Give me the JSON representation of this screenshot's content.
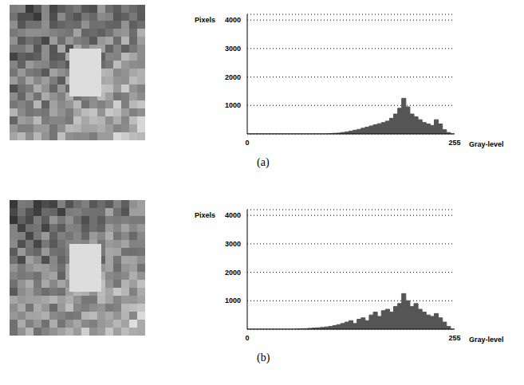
{
  "chart_data": [
    {
      "type": "histogram",
      "title": "(a)",
      "x_label": "Gray-level",
      "y_label": "Pixels",
      "color": "#555555",
      "grid": true,
      "bins": [
        0,
        5,
        10,
        15,
        20,
        25,
        30,
        35,
        40,
        45,
        50,
        55,
        60,
        65,
        70,
        75,
        80,
        85,
        90,
        95,
        100,
        105,
        110,
        115,
        120,
        125,
        130,
        135,
        140,
        145,
        150,
        155,
        160,
        165,
        170,
        175,
        180,
        185,
        190,
        195,
        200,
        205,
        210,
        215,
        220,
        225,
        230,
        235,
        240,
        245,
        250,
        255
      ],
      "counts": [
        0,
        0,
        0,
        0,
        0,
        0,
        0,
        0,
        0,
        0,
        0,
        0,
        0,
        0,
        0,
        0,
        0,
        0,
        0,
        0,
        10,
        20,
        30,
        50,
        70,
        100,
        130,
        160,
        200,
        240,
        280,
        320,
        360,
        400,
        450,
        550,
        700,
        900,
        1250,
        950,
        700,
        600,
        500,
        400,
        350,
        300,
        500,
        350,
        150,
        50,
        0
      ],
      "xlim": [
        0,
        255
      ],
      "xticks": [
        0,
        255
      ],
      "ylim": [
        0,
        4200
      ],
      "yticks": [
        1000,
        2000,
        3000,
        4000
      ]
    },
    {
      "type": "histogram",
      "title": "(b)",
      "x_label": "Gray-level",
      "y_label": "Pixels",
      "color": "#555555",
      "grid": true,
      "bins": [
        0,
        5,
        10,
        15,
        20,
        25,
        30,
        35,
        40,
        45,
        50,
        55,
        60,
        65,
        70,
        75,
        80,
        85,
        90,
        95,
        100,
        105,
        110,
        115,
        120,
        125,
        130,
        135,
        140,
        145,
        150,
        155,
        160,
        165,
        170,
        175,
        180,
        185,
        190,
        195,
        200,
        205,
        210,
        215,
        220,
        225,
        230,
        235,
        240,
        245,
        250,
        255
      ],
      "counts": [
        0,
        0,
        0,
        0,
        0,
        0,
        0,
        0,
        0,
        0,
        0,
        0,
        10,
        15,
        20,
        30,
        40,
        50,
        60,
        80,
        100,
        130,
        160,
        200,
        250,
        300,
        200,
        350,
        400,
        300,
        500,
        600,
        450,
        650,
        700,
        600,
        800,
        900,
        1250,
        1000,
        800,
        900,
        700,
        600,
        500,
        450,
        550,
        400,
        250,
        100,
        0
      ],
      "xlim": [
        0,
        255
      ],
      "xticks": [
        0,
        255
      ],
      "ylim": [
        0,
        4200
      ],
      "yticks": [
        1000,
        2000,
        3000,
        4000
      ]
    }
  ]
}
